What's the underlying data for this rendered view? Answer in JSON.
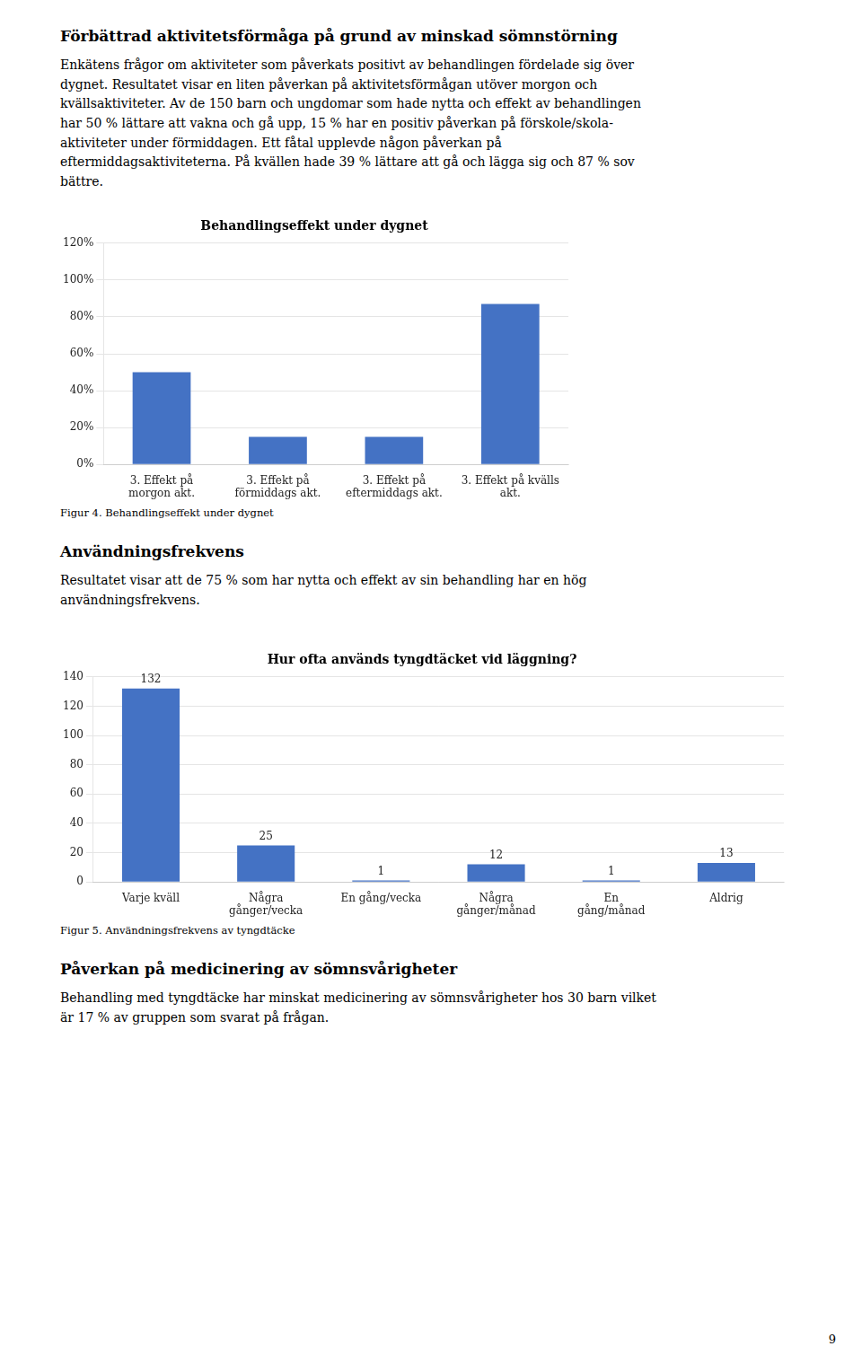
{
  "sections": [
    {
      "title": "Förbättrad aktivitetsförmåga på grund av minskad sömnstörning",
      "lines": [
        "Enkätens frågor om aktiviteter som påverkats positivt av behandlingen fördelade sig över",
        "dygnet. Resultatet visar en liten påverkan på aktivitetsförmågan utöver morgon och",
        "kvällsaktiviteter. Av de 150 barn och ungdomar som hade nytta och effekt av behandlingen",
        "har 50 % lättare att vakna och gå upp, 15 % har en positiv påverkan på förskole/skola-",
        "aktiviteter under förmiddagen.  Ett fåtal upplevde någon påverkan på",
        "eftermiddagsaktiviteterna. På kvällen hade 39 % lättare att gå och lägga sig och 87 % sov",
        "bättre."
      ]
    },
    {
      "title": "Användningsfrekvens",
      "lines": [
        "Resultatet visar att de 75 % som har nytta och effekt av sin behandling har en hög",
        "användningsfrekvens."
      ]
    },
    {
      "title": "Påverkan på medicinering av sömnsvårigheter",
      "lines": [
        "Behandling med tyngdtäcke har minskat medicinering av sömnsvårigheter hos 30 barn vilket",
        "är 17 % av gruppen som svarat på frågan."
      ]
    }
  ],
  "chart_data": [
    {
      "type": "bar",
      "title": "Behandlingseffekt under dygnet",
      "categories": [
        "3. Effekt på\nmorgon akt.",
        "3. Effekt på\nförmiddags akt.",
        "3. Effekt på\neftermiddags akt.",
        "3. Effekt på kvälls\nakt."
      ],
      "values": [
        0.5,
        0.15,
        0.15,
        0.87
      ],
      "color": "#4472C4",
      "ylim": [
        0,
        1.2
      ],
      "yticks": [
        {
          "value": 0.0,
          "label": "0%"
        },
        {
          "value": 0.2,
          "label": "20%"
        },
        {
          "value": 0.4,
          "label": "40%"
        },
        {
          "value": 0.6,
          "label": "60%"
        },
        {
          "value": 0.8,
          "label": "80%"
        },
        {
          "value": 1.0,
          "label": "100%"
        },
        {
          "value": 1.2,
          "label": "120%"
        }
      ],
      "grid": true,
      "caption": "Figur 4. Behandlingseffekt under dygnet"
    },
    {
      "type": "bar",
      "title": "Hur ofta används tyngdtäcket vid läggning?",
      "categories": [
        "Varje kväll",
        "Några\ngånger/vecka",
        "En gång/vecka",
        "Några\ngånger/månad",
        "En\ngång/månad",
        "Aldrig"
      ],
      "values": [
        132,
        25,
        1,
        12,
        1,
        13
      ],
      "color": "#4472C4",
      "ylim": [
        0,
        140
      ],
      "yticks": [
        0,
        20,
        40,
        60,
        80,
        100,
        120,
        140
      ],
      "grid": true,
      "data_labels": true,
      "caption": "Figur 5. Användningsfrekvens av tyngdtäcke"
    }
  ],
  "page_number": "9"
}
